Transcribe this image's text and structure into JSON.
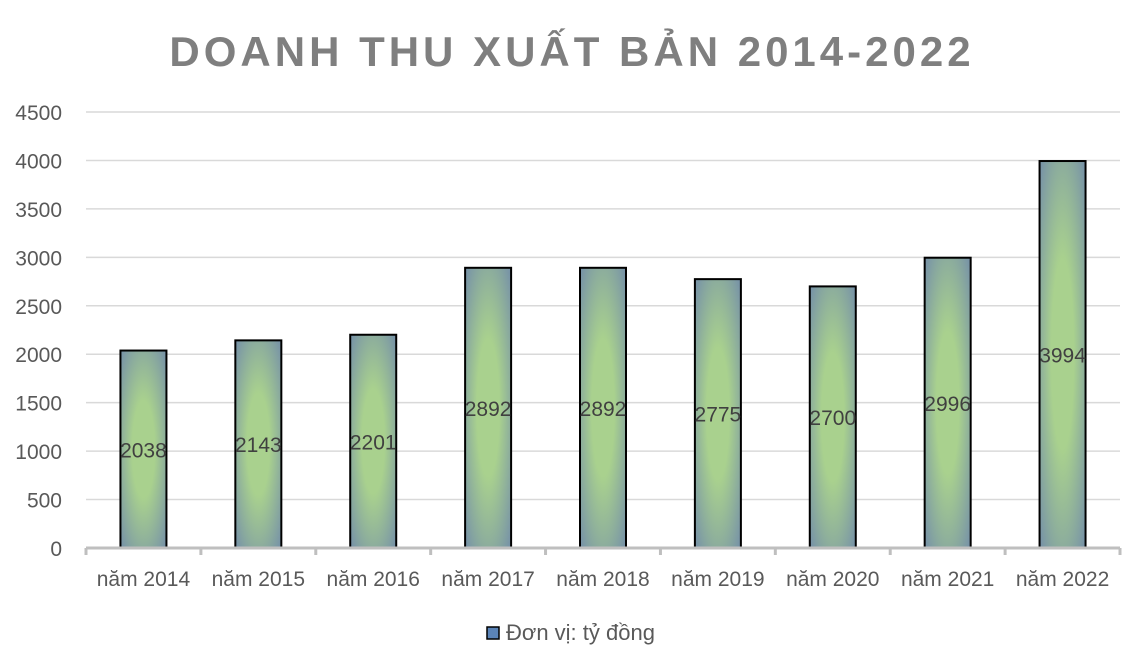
{
  "chart_data": {
    "type": "bar",
    "title": "DOANH THU XUẤT BẢN 2014-2022",
    "categories": [
      "năm 2014",
      "năm 2015",
      "năm 2016",
      "năm 2017",
      "năm 2018",
      "năm 2019",
      "năm 2020",
      "năm 2021",
      "năm 2022"
    ],
    "series": [
      {
        "name": "Đơn vị: tỷ đồng",
        "values": [
          2038,
          2143,
          2201,
          2892,
          2892,
          2775,
          2700,
          2996,
          3994
        ]
      }
    ],
    "xlabel": "",
    "ylabel": "",
    "ylim": [
      0,
      4500
    ],
    "yticks": [
      0,
      500,
      1000,
      1500,
      2000,
      2500,
      3000,
      3500,
      4000,
      4500
    ],
    "grid": true,
    "legend": "bottom",
    "data_labels": "inside-center",
    "colors": {
      "bar_center": "#a9d18e",
      "bar_edge": "#7590a8",
      "legend_swatch": "#5b84b8",
      "title": "#7f7f7f",
      "grid": "#d9d9d9",
      "text": "#595959"
    }
  }
}
